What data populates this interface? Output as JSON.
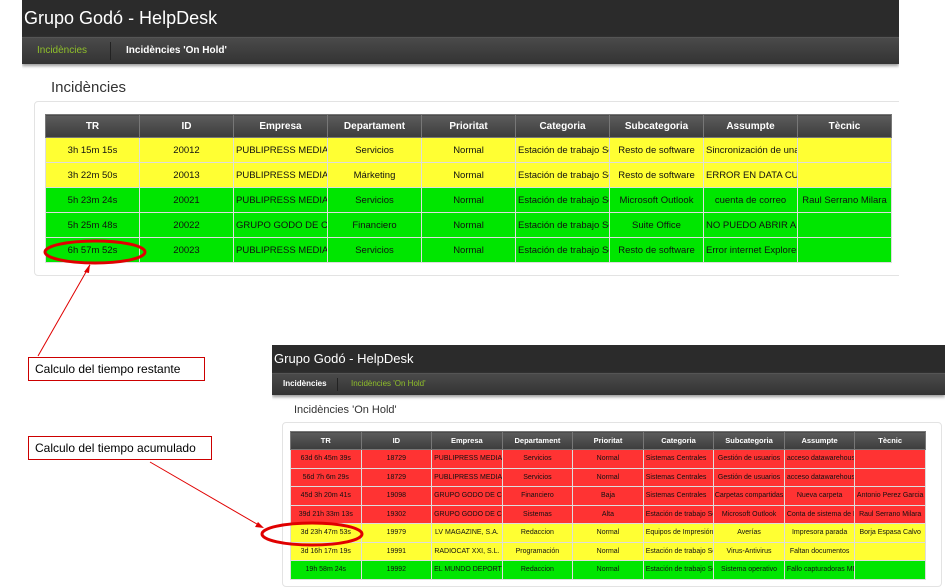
{
  "top": {
    "app_title": "Grupo Godó - HelpDesk",
    "nav": [
      {
        "label": "Incidències",
        "active": true
      },
      {
        "label": "Incidències 'On Hold'",
        "active": false
      }
    ],
    "page_title": "Incidències",
    "columns": [
      "TR",
      "ID",
      "Empresa",
      "Departament",
      "Prioritat",
      "Categoria",
      "Subcategoria",
      "Assumpte",
      "Tècnic"
    ],
    "rows": [
      {
        "status": "yellow",
        "cells": [
          "3h 15m 15s",
          "20012",
          "PUBLIPRESS MEDIA, :",
          "Servicios",
          "Normal",
          "Estación de trabajo So",
          "Resto de software",
          "Sincronización de una",
          ""
        ]
      },
      {
        "status": "yellow",
        "cells": [
          "3h 22m 50s",
          "20013",
          "PUBLIPRESS MEDIA, :",
          "Márketing",
          "Normal",
          "Estación de trabajo So",
          "Resto de software",
          "ERROR EN DATA CUA",
          ""
        ]
      },
      {
        "status": "green",
        "cells": [
          "5h 23m 24s",
          "20021",
          "PUBLIPRESS MEDIA, :",
          "Servicios",
          "Normal",
          "Estación de trabajo So",
          "Microsoft Outlook",
          "cuenta de correo",
          "Raul Serrano Milara"
        ]
      },
      {
        "status": "green",
        "cells": [
          "5h 25m 48s",
          "20022",
          "GRUPO GODO DE CO",
          "Financiero",
          "Normal",
          "Estación de trabajo So",
          "Suite Office",
          "NO PUEDO ABRIR AR",
          ""
        ]
      },
      {
        "status": "green",
        "cells": [
          "6h 57m 52s",
          "20023",
          "PUBLIPRESS MEDIA, :",
          "Servicios",
          "Normal",
          "Estación de trabajo So",
          "Resto de software",
          "Error internet Explorer",
          ""
        ]
      }
    ]
  },
  "bottom": {
    "app_title": "Grupo Godó - HelpDesk",
    "nav": [
      {
        "label": "Incidències",
        "active": false
      },
      {
        "label": "Incidències 'On Hold'",
        "active": true
      }
    ],
    "page_title": "Incidències 'On Hold'",
    "columns": [
      "TR",
      "ID",
      "Empresa",
      "Departament",
      "Prioritat",
      "Categoria",
      "Subcategoria",
      "Assumpte",
      "Tècnic"
    ],
    "rows": [
      {
        "status": "red",
        "cells": [
          "63d 6h 45m 39s",
          "18729",
          "PUBLIPRESS MEDIA, :",
          "Servicios",
          "Normal",
          "Sistemas Centrales",
          "Gestión de usuarios",
          "acceso datawarehous",
          ""
        ]
      },
      {
        "status": "red",
        "cells": [
          "56d 7h 6m 29s",
          "18729",
          "PUBLIPRESS MEDIA, :",
          "Servicios",
          "Normal",
          "Sistemas Centrales",
          "Gestión de usuarios",
          "acceso datawarehous",
          ""
        ]
      },
      {
        "status": "red",
        "cells": [
          "45d 3h 20m 41s",
          "19098",
          "GRUPO GODO DE CO",
          "Financiero",
          "Baja",
          "Sistemas Centrales",
          "Carpetas compartidas",
          "Nueva carpeta",
          "Antonio Perez Garcia"
        ]
      },
      {
        "status": "red",
        "cells": [
          "39d 21h 33m 13s",
          "19302",
          "GRUPO GODO DE CO",
          "Sistemas",
          "Alta",
          "Estación de trabajo So",
          "Microsoft Outlook",
          "Conta de sistema de F",
          "Raul Serrano Milara"
        ]
      },
      {
        "status": "yellow",
        "cells": [
          "3d 23h 47m 53s",
          "19979",
          "LV MAGAZINE, S.A.",
          "Redaccion",
          "Normal",
          "Equipos de Impresión",
          "Averías",
          "Impresora parada",
          "Borja Espasa Calvo"
        ]
      },
      {
        "status": "yellow",
        "cells": [
          "3d 16h 17m 19s",
          "19991",
          "RADIOCAT XXI, S.L.",
          "Programación",
          "Normal",
          "Estación de trabajo So",
          "Virus-Antivirus",
          "Faltan documentos",
          ""
        ]
      },
      {
        "status": "green",
        "cells": [
          "19h 58m 24s",
          "19992",
          "EL MUNDO DEPORTIV",
          "Redaccion",
          "Normal",
          "Estación de trabajo So",
          "Sistema operativo",
          "Fallo capturadoras MD",
          ""
        ]
      }
    ]
  },
  "annotations": {
    "remaining": "Calculo del tiempo restante",
    "accumulated": "Calculo del tiempo acumulado",
    "highlight_color": "#e00000"
  },
  "colors": {
    "yellow": "#ffff33",
    "green": "#00e600",
    "red": "#ff3333"
  }
}
